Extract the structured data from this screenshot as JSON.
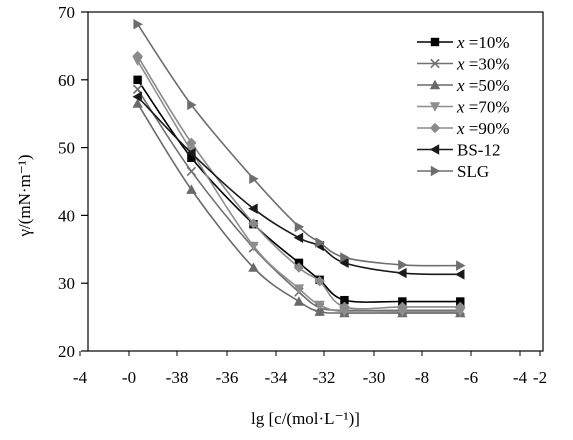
{
  "chart_data": {
    "type": "line",
    "xlabel": "lg [c/(mol·L⁻¹)]",
    "ylabel": "γ/(mN·m⁻¹)",
    "xlim": [
      -4.2,
      -2
    ],
    "ylim": [
      20,
      70
    ],
    "x_ticks": [
      "-4",
      "-0",
      "-38",
      "-36",
      "-34",
      "-32",
      "-30",
      "-8",
      "-6",
      "-4",
      "-2"
    ],
    "y_ticks": [
      "20",
      "30",
      "40",
      "50",
      "60",
      "70"
    ],
    "legend_position": "top-right",
    "grid": false,
    "series": [
      {
        "name": "x =10%",
        "color": "#000000",
        "marker": "square",
        "x": [
          -3.96,
          -3.7,
          -3.4,
          -3.18,
          -3.08,
          -2.96,
          -2.68,
          -2.4
        ],
        "y": [
          60.0,
          48.5,
          38.7,
          33.0,
          30.5,
          27.5,
          27.3,
          27.3
        ]
      },
      {
        "name": "x =30%",
        "color": "#707070",
        "marker": "cross",
        "x": [
          -3.96,
          -3.7,
          -3.4,
          -3.18,
          -3.08,
          -2.96,
          -2.68,
          -2.4
        ],
        "y": [
          58.6,
          46.5,
          35.2,
          28.7,
          26.4,
          26.0,
          26.0,
          26.0
        ]
      },
      {
        "name": "x =50%",
        "color": "#6a6a6a",
        "marker": "triangle",
        "x": [
          -3.96,
          -3.7,
          -3.4,
          -3.18,
          -3.08,
          -2.96,
          -2.68,
          -2.4
        ],
        "y": [
          56.5,
          43.8,
          32.3,
          27.3,
          25.8,
          25.6,
          25.6,
          25.6
        ]
      },
      {
        "name": "x =70%",
        "color": "#8e8e8e",
        "marker": "triangle-down",
        "x": [
          -3.96,
          -3.7,
          -3.4,
          -3.18,
          -3.08,
          -2.96,
          -2.68,
          -2.4
        ],
        "y": [
          62.8,
          49.5,
          35.5,
          29.2,
          26.8,
          25.8,
          25.8,
          25.8
        ]
      },
      {
        "name": "x =90%",
        "color": "#8a8a8a",
        "marker": "diamond",
        "x": [
          -3.96,
          -3.7,
          -3.4,
          -3.18,
          -3.08,
          -2.96,
          -2.68,
          -2.4
        ],
        "y": [
          63.5,
          50.7,
          38.8,
          32.3,
          30.3,
          26.5,
          26.5,
          26.5
        ]
      },
      {
        "name": "BS-12",
        "color": "#1a1a1a",
        "marker": "triangle-left",
        "x": [
          -3.96,
          -3.7,
          -3.4,
          -3.18,
          -3.08,
          -2.96,
          -2.68,
          -2.4
        ],
        "y": [
          57.5,
          49.2,
          41.0,
          36.7,
          35.5,
          33.0,
          31.5,
          31.3
        ]
      },
      {
        "name": "SLG",
        "color": "#6e6e6e",
        "marker": "triangle-right",
        "x": [
          -3.96,
          -3.7,
          -3.4,
          -3.18,
          -3.08,
          -2.96,
          -2.68,
          -2.4
        ],
        "y": [
          68.2,
          56.3,
          45.4,
          38.3,
          36.0,
          33.8,
          32.7,
          32.6
        ]
      }
    ]
  }
}
